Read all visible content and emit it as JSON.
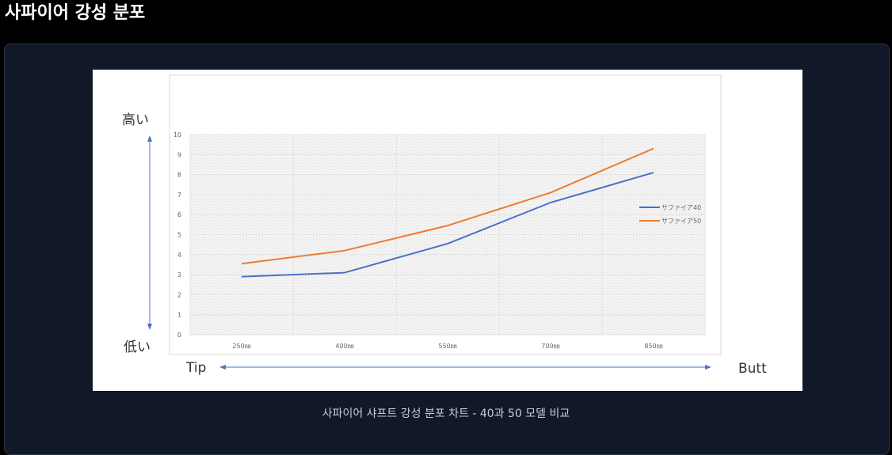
{
  "page": {
    "title": "사파이어 강성 분포",
    "caption": "사파이어 샤프트 강성 분포 차트 - 40과 50 모델 비교"
  },
  "colors": {
    "page_bg": "#000000",
    "card_bg": "#111827",
    "series_40": "#4a72c4",
    "series_50": "#ed7d31",
    "axis_arrow": "#4a72c4"
  },
  "chart_data": {
    "type": "line",
    "x": [
      "250㎜",
      "400㎜",
      "550㎜",
      "700㎜",
      "850㎜"
    ],
    "ylim": [
      0,
      10
    ],
    "yticks": [
      "0",
      "1",
      "2",
      "3",
      "4",
      "5",
      "6",
      "7",
      "8",
      "9",
      "10"
    ],
    "grid": true,
    "legend_position": "right",
    "series": [
      {
        "name": "サファイア40",
        "values": [
          2.9,
          3.1,
          4.55,
          6.6,
          8.1
        ]
      },
      {
        "name": "サファイア50",
        "values": [
          3.55,
          4.2,
          5.45,
          7.1,
          9.3
        ]
      }
    ],
    "annotations": {
      "y_high": "高い",
      "y_low": "低い",
      "x_left": "Tip",
      "x_right": "Butt"
    }
  }
}
